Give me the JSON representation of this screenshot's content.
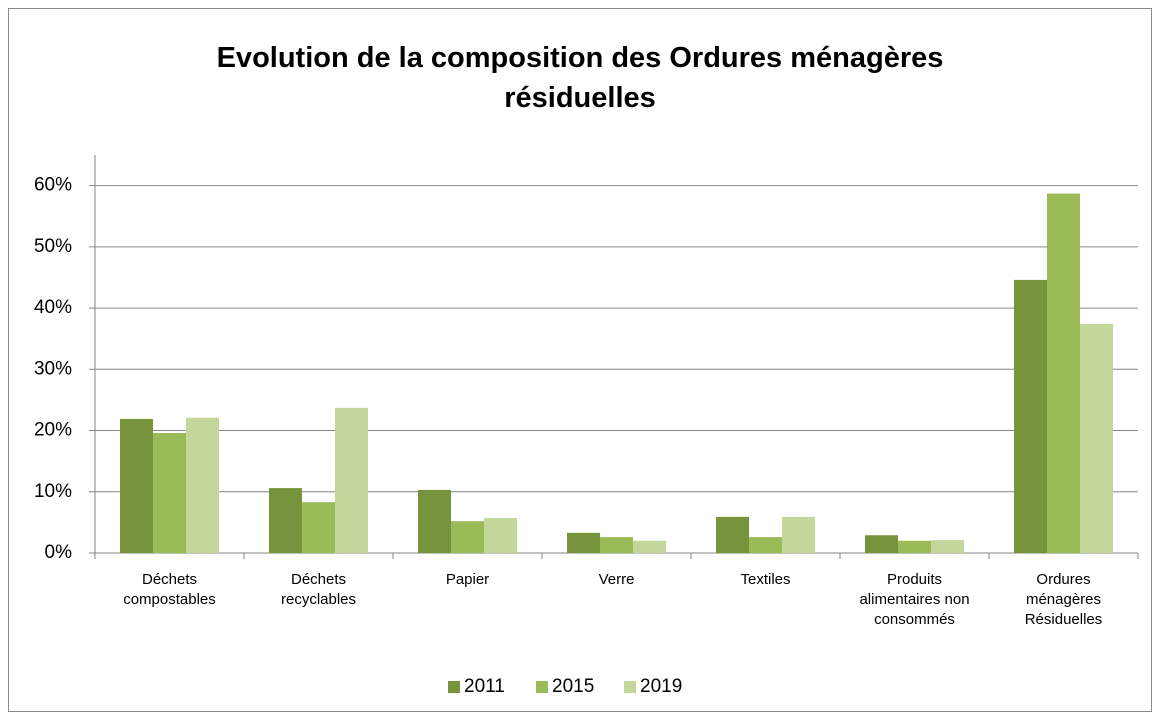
{
  "chart_data": {
    "type": "bar",
    "title": "Evolution de la composition des Ordures ménagères résiduelles",
    "categories": [
      "Déchets compostables",
      "Déchets recyclables",
      "Papier",
      "Verre",
      "Textiles",
      "Produits alimentaires non consommés",
      "Ordures ménagères Résiduelles"
    ],
    "series": [
      {
        "name": "2011",
        "color": "#77933c",
        "values": [
          21.9,
          10.6,
          10.3,
          3.3,
          5.9,
          2.9,
          44.6
        ]
      },
      {
        "name": "2015",
        "color": "#9bbb59",
        "values": [
          19.6,
          8.3,
          5.2,
          2.6,
          2.6,
          2.0,
          58.7
        ]
      },
      {
        "name": "2019",
        "color": "#c3d69b",
        "values": [
          22.1,
          23.7,
          5.7,
          2.0,
          5.9,
          2.1,
          37.4
        ]
      }
    ],
    "ylim": [
      0,
      65
    ],
    "yticks": [
      {
        "value": 0,
        "label": "0%"
      },
      {
        "value": 10,
        "label": "10%"
      },
      {
        "value": 20,
        "label": "20%"
      },
      {
        "value": 30,
        "label": "30%"
      },
      {
        "value": 40,
        "label": "40%"
      },
      {
        "value": 50,
        "label": "50%"
      },
      {
        "value": 60,
        "label": "60%"
      }
    ],
    "grid": true,
    "legend": "bottom"
  }
}
